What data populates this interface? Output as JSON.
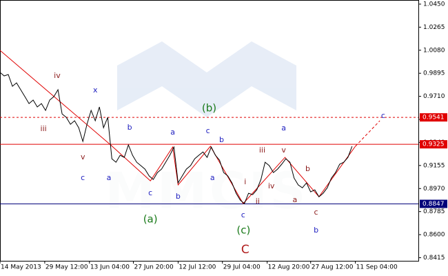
{
  "chart_data": {
    "type": "line",
    "watermark": "MMCIS",
    "color": "#000000",
    "x": [
      0,
      1,
      2,
      3,
      4,
      5,
      6,
      7,
      8,
      9,
      10,
      11,
      12,
      13,
      14,
      15,
      16,
      17,
      18,
      19,
      20,
      21,
      22,
      23,
      24,
      25,
      26,
      27,
      28,
      29,
      30,
      31,
      32,
      33,
      34,
      35,
      36,
      37,
      38,
      39,
      40,
      41,
      42,
      43,
      44,
      45,
      46,
      47,
      48,
      49,
      50,
      51,
      52,
      53,
      54,
      55,
      56,
      57,
      58,
      59,
      60,
      61,
      62,
      63,
      64,
      65,
      66,
      67,
      68,
      69,
      70,
      71,
      72,
      73,
      74,
      75,
      76,
      77,
      78,
      79,
      80,
      81,
      82,
      83,
      84,
      85
    ],
    "values": [
      0.9902,
      0.9874,
      0.9885,
      0.9791,
      0.9818,
      0.9763,
      0.9708,
      0.9652,
      0.968,
      0.9625,
      0.9652,
      0.9597,
      0.968,
      0.9708,
      0.9763,
      0.9569,
      0.9541,
      0.9486,
      0.9514,
      0.9458,
      0.9348,
      0.9486,
      0.9597,
      0.9514,
      0.9625,
      0.9458,
      0.9541,
      0.9209,
      0.9181,
      0.9237,
      0.922,
      0.932,
      0.9237,
      0.9181,
      0.9154,
      0.9126,
      0.9071,
      0.9043,
      0.9098,
      0.9126,
      0.9181,
      0.9237,
      0.9303,
      0.9015,
      0.9071,
      0.9126,
      0.9154,
      0.9209,
      0.9237,
      0.9264,
      0.922,
      0.9303,
      0.9237,
      0.9198,
      0.9098,
      0.9071,
      0.9015,
      0.8932,
      0.8877,
      0.8849,
      0.8932,
      0.8921,
      0.896,
      0.9043,
      0.9181,
      0.9154,
      0.9098,
      0.9126,
      0.9165,
      0.9209,
      0.9181,
      0.9054,
      0.8999,
      0.8976,
      0.9015,
      0.8943,
      0.896,
      0.8904,
      0.8932,
      0.8976,
      0.9054,
      0.9098,
      0.9165,
      0.9181,
      0.922,
      0.9309
    ],
    "wave": {
      "color": "#e00000",
      "x": [
        0,
        26.7,
        36.3,
        41.7,
        43,
        50.8,
        58.7,
        68.8,
        77,
        85.8
      ],
      "values": [
        1.0079,
        0.932,
        0.9032,
        0.9303,
        0.8999,
        0.9309,
        0.8849,
        0.922,
        0.8904,
        0.9309
      ]
    },
    "wave_projection": {
      "color": "#e00000",
      "x": [
        85.8,
        91.7
      ],
      "values": [
        0.9309,
        0.9514
      ]
    },
    "levels": [
      {
        "value": 0.9541,
        "color": "#e00000",
        "dashed": true
      },
      {
        "value": 0.9325,
        "color": "#e00000",
        "dashed": false
      },
      {
        "value": 0.8847,
        "color": "#00007a",
        "dashed": false
      }
    ],
    "annotations": [
      {
        "text": "iv",
        "x": 13.8,
        "y": 0.9874,
        "color": "#8b1a1a"
      },
      {
        "text": "iii",
        "x": 10.5,
        "y": 0.9447,
        "color": "#8b1a1a"
      },
      {
        "text": "v",
        "x": 20,
        "y": 0.922,
        "color": "#8b1a1a"
      },
      {
        "text": "x",
        "x": 23,
        "y": 0.9758,
        "color": "#2020c0"
      },
      {
        "text": "c",
        "x": 20,
        "y": 0.9054,
        "color": "#2020c0"
      },
      {
        "text": "a",
        "x": 26.3,
        "y": 0.9054,
        "color": "#2020c0"
      },
      {
        "text": "b",
        "x": 31.3,
        "y": 0.9458,
        "color": "#2020c0"
      },
      {
        "text": "a",
        "x": 41.7,
        "y": 0.942,
        "color": "#2020c0"
      },
      {
        "text": "c",
        "x": 36.3,
        "y": 0.8932,
        "color": "#2020c0"
      },
      {
        "text": "b",
        "x": 43,
        "y": 0.8904,
        "color": "#2020c0"
      },
      {
        "text": "(a)",
        "x": 36.3,
        "y": 0.8722,
        "color": "#1a7a1a"
      },
      {
        "text": "(b)",
        "x": 50.5,
        "y": 0.9614,
        "color": "#1a7a1a"
      },
      {
        "text": "c",
        "x": 50.2,
        "y": 0.9431,
        "color": "#2020c0"
      },
      {
        "text": "b",
        "x": 53.5,
        "y": 0.9359,
        "color": "#2020c0"
      },
      {
        "text": "a",
        "x": 51.3,
        "y": 0.9054,
        "color": "#2020c0"
      },
      {
        "text": "i",
        "x": 59.2,
        "y": 0.9021,
        "color": "#8b1a1a"
      },
      {
        "text": "ii",
        "x": 62.2,
        "y": 0.8866,
        "color": "#8b1a1a"
      },
      {
        "text": "iii",
        "x": 63.3,
        "y": 0.9276,
        "color": "#8b1a1a"
      },
      {
        "text": "iv",
        "x": 65.5,
        "y": 0.8987,
        "color": "#8b1a1a"
      },
      {
        "text": "v",
        "x": 68.5,
        "y": 0.9276,
        "color": "#8b1a1a"
      },
      {
        "text": "c",
        "x": 58.7,
        "y": 0.8755,
        "color": "#2020c0"
      },
      {
        "text": "(c)",
        "x": 58.8,
        "y": 0.8633,
        "color": "#1a7a1a"
      },
      {
        "text": "C",
        "x": 59.2,
        "y": 0.8478,
        "color": "#b01a1a"
      },
      {
        "text": "a",
        "x": 68.5,
        "y": 0.9453,
        "color": "#2020c0"
      },
      {
        "text": "b",
        "x": 74.3,
        "y": 0.9126,
        "color": "#8b1a1a"
      },
      {
        "text": "a",
        "x": 71.2,
        "y": 0.8877,
        "color": "#8b1a1a"
      },
      {
        "text": "c",
        "x": 76.3,
        "y": 0.8777,
        "color": "#8b1a1a"
      },
      {
        "text": "b",
        "x": 76.3,
        "y": 0.8633,
        "color": "#2020c0"
      },
      {
        "text": "c",
        "x": 92.5,
        "y": 0.9553,
        "color": "#2020c0"
      }
    ],
    "xlim": [
      0,
      101
    ],
    "xticks": [
      {
        "value": 0,
        "label": "14 May 2013"
      },
      {
        "value": 10.8,
        "label": "29 May 12:00"
      },
      {
        "value": 21.6,
        "label": "13 Jun 04:00"
      },
      {
        "value": 32.2,
        "label": "27 Jun 20:00"
      },
      {
        "value": 43,
        "label": "12 Jul 12:00"
      },
      {
        "value": 53.7,
        "label": "29 Jul 04:00"
      },
      {
        "value": 64.5,
        "label": "12 Aug 20:00"
      },
      {
        "value": 75,
        "label": "27 Aug 12:00"
      },
      {
        "value": 85.8,
        "label": "11 Sep 04:00"
      }
    ],
    "ylim": [
      0.839,
      1.0483
    ],
    "yticks": [
      {
        "value": 1.045,
        "label": "1.0450"
      },
      {
        "value": 1.0265,
        "label": "1.0265"
      },
      {
        "value": 1.008,
        "label": "1.0080"
      },
      {
        "value": 0.9895,
        "label": "0.9895"
      },
      {
        "value": 0.971,
        "label": "0.9710"
      },
      {
        "value": 0.9525,
        "label": "0.9525"
      },
      {
        "value": 0.934,
        "label": "0.9340"
      },
      {
        "value": 0.9155,
        "label": "0.9155"
      },
      {
        "value": 0.897,
        "label": "0.8970"
      },
      {
        "value": 0.8785,
        "label": "0.8785"
      },
      {
        "value": 0.86,
        "label": "0.8600"
      },
      {
        "value": 0.8415,
        "label": "0.8415"
      }
    ]
  }
}
